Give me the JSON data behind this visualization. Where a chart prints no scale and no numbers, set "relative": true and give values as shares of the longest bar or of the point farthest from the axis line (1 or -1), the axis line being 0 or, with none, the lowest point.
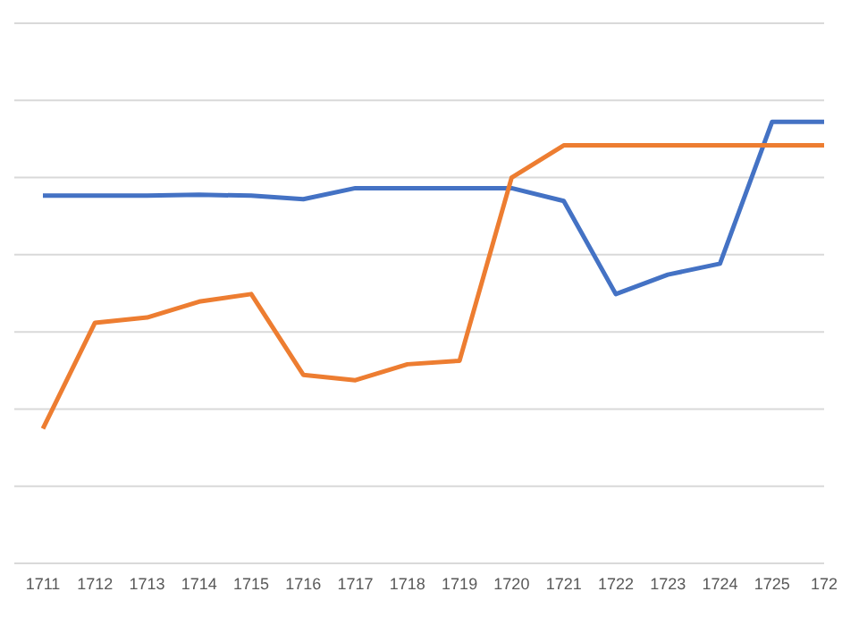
{
  "chart_data": {
    "type": "line",
    "relative": true,
    "grid": "y",
    "categories": [
      "1711",
      "1712",
      "1713",
      "1714",
      "1715",
      "1716",
      "1717",
      "1718",
      "1719",
      "1720",
      "1721",
      "1722",
      "1723",
      "1724",
      "1725",
      "172"
    ],
    "series": [
      {
        "color": "#4472c4",
        "values": [
          0.833,
          0.833,
          0.833,
          0.835,
          0.833,
          0.825,
          0.85,
          0.85,
          0.85,
          0.85,
          0.821,
          0.61,
          0.654,
          0.679,
          1,
          1
        ]
      },
      {
        "color": "#ed7d31",
        "values": [
          0.305,
          0.545,
          0.557,
          0.593,
          0.61,
          0.427,
          0.415,
          0.451,
          0.459,
          0.874,
          0.947,
          0.947,
          0.947,
          0.947,
          0.947,
          0.947
        ]
      }
    ]
  }
}
